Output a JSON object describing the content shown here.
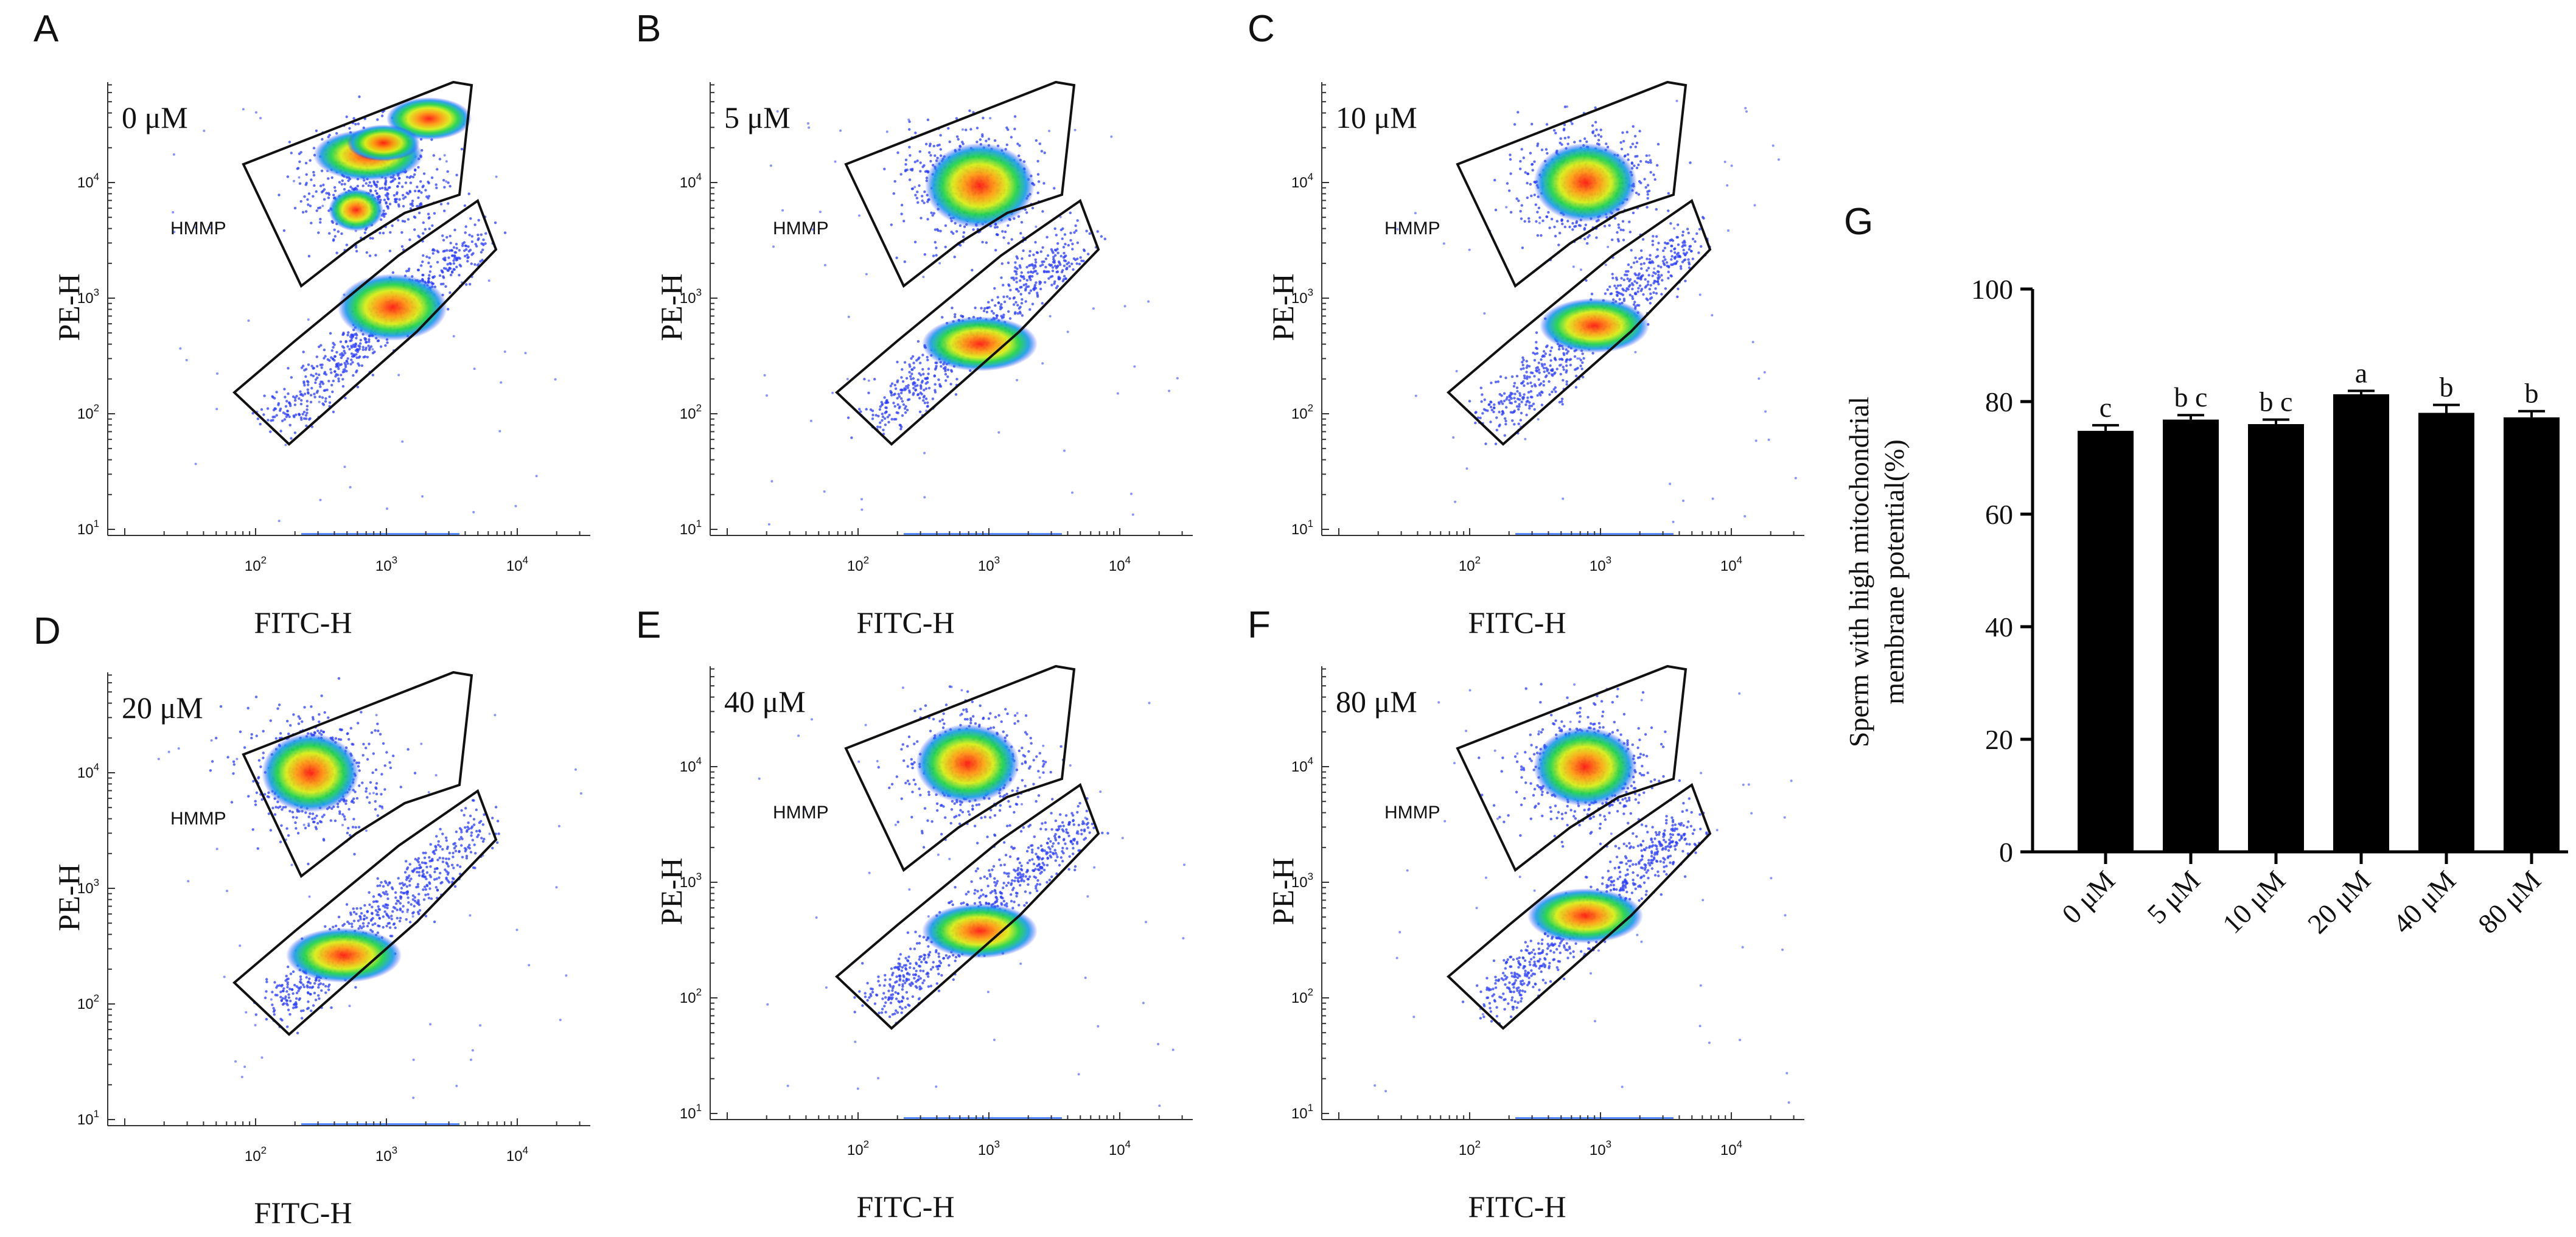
{
  "figure": {
    "panels": [
      {
        "label": "A",
        "condition": "0 μM",
        "gate_label": "HMMP",
        "xlabel": "FITC-H",
        "ylabel": "PE-H"
      },
      {
        "label": "B",
        "condition": "5 μM",
        "gate_label": "HMMP",
        "xlabel": "FITC-H",
        "ylabel": "PE-H"
      },
      {
        "label": "C",
        "condition": "10 μM",
        "gate_label": "HMMP",
        "xlabel": "FITC-H",
        "ylabel": "PE-H"
      },
      {
        "label": "D",
        "condition": "20 μM",
        "gate_label": "HMMP",
        "xlabel": "FITC-H",
        "ylabel": "PE-H"
      },
      {
        "label": "E",
        "condition": "40 μM",
        "gate_label": "HMMP",
        "xlabel": "FITC-H",
        "ylabel": "PE-H"
      },
      {
        "label": "F",
        "condition": "80 μM",
        "gate_label": "HMMP",
        "xlabel": "FITC-H",
        "ylabel": "PE-H"
      }
    ],
    "colors": {
      "ink": "#111111",
      "scatter_low": "#1f3cff",
      "scatter_high": "#e8201a",
      "bar": "#000000"
    }
  },
  "chart_data": [
    {
      "type": "scatter",
      "subtype": "flow-cytometry-density",
      "panels": [
        "A",
        "B",
        "C",
        "D",
        "E",
        "F"
      ],
      "xlabel": "FITC-H",
      "ylabel": "PE-H",
      "x_scale": "log",
      "y_scale": "log",
      "x_ticks": [
        {
          "base": "10",
          "exp": "2"
        },
        {
          "base": "10",
          "exp": "3"
        },
        {
          "base": "10",
          "exp": "4"
        }
      ],
      "y_ticks": [
        {
          "base": "10",
          "exp": "1"
        },
        {
          "base": "10",
          "exp": "2"
        },
        {
          "base": "10",
          "exp": "3"
        },
        {
          "base": "10",
          "exp": "4"
        }
      ],
      "gate": "HMMP"
    },
    {
      "type": "bar",
      "label": "G",
      "categories": [
        "0 μM",
        "5 μM",
        "10 μM",
        "20 μM",
        "40 μM",
        "80 μM"
      ],
      "values": [
        74.8,
        76.8,
        76.0,
        81.3,
        78.0,
        77.2
      ],
      "errors": [
        1.0,
        0.8,
        0.8,
        0.6,
        1.4,
        1.1
      ],
      "significance": [
        "c",
        "b c",
        "b c",
        "a",
        "b",
        "b"
      ],
      "ylabel_line1": "Sperm with high mitochondrial",
      "ylabel_line2": "membrane potential(%)",
      "ylim": [
        0,
        100
      ],
      "yticks": [
        "0",
        "20",
        "40",
        "60",
        "80",
        "100"
      ]
    }
  ]
}
